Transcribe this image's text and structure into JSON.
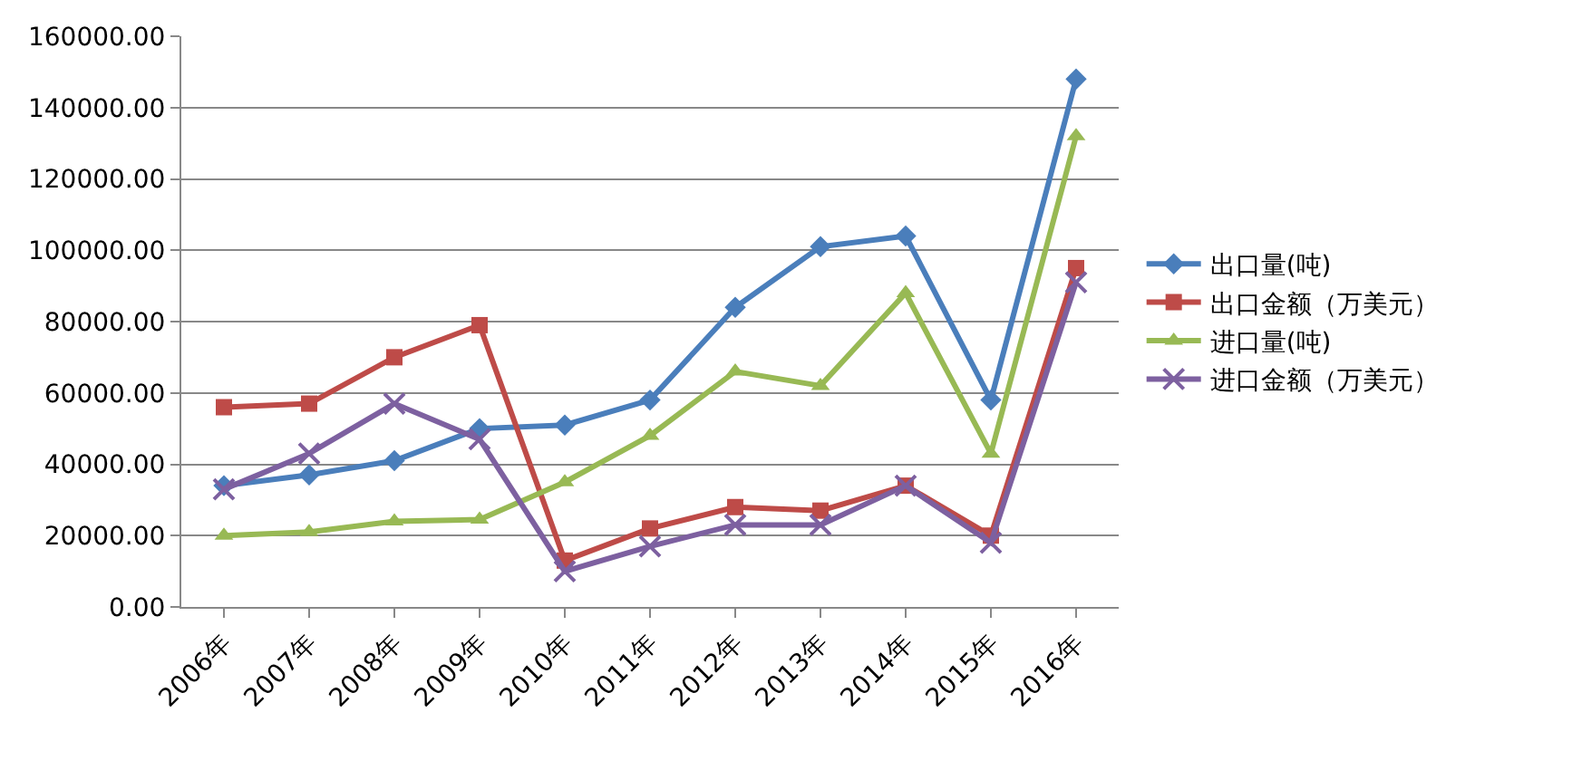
{
  "chart_data": {
    "type": "line",
    "categories": [
      "2006年",
      "2007年",
      "2008年",
      "2009年",
      "2010年",
      "2011年",
      "2012年",
      "2013年",
      "2014年",
      "2015年",
      "2016年"
    ],
    "ylim": [
      0,
      160000
    ],
    "yticks": [
      {
        "value": 0,
        "label": "0.00"
      },
      {
        "value": 20000,
        "label": "20000.00"
      },
      {
        "value": 40000,
        "label": "40000.00"
      },
      {
        "value": 60000,
        "label": "60000.00"
      },
      {
        "value": 80000,
        "label": "80000.00"
      },
      {
        "value": 100000,
        "label": "100000.00"
      },
      {
        "value": 120000,
        "label": "120000.00"
      },
      {
        "value": 140000,
        "label": "140000.00"
      },
      {
        "value": 160000,
        "label": "160000.00"
      }
    ],
    "grid": "y",
    "legend": "right",
    "line_style": "solid",
    "series": [
      {
        "name": "出口量(吨)",
        "color": "#4a7ebb",
        "marker": "diamond",
        "values": [
          34000,
          37000,
          41000,
          50000,
          51000,
          58000,
          84000,
          101000,
          104000,
          58000,
          148000
        ]
      },
      {
        "name": "出口金额（万美元）",
        "color": "#be4b48",
        "marker": "square",
        "values": [
          56000,
          57000,
          70000,
          79000,
          13000,
          22000,
          28000,
          27000,
          34000,
          20000,
          95000
        ]
      },
      {
        "name": "进口量(吨)",
        "color": "#98b954",
        "marker": "triangle",
        "values": [
          20000,
          21000,
          24000,
          24500,
          35000,
          48000,
          66000,
          62000,
          88000,
          43000,
          132000
        ]
      },
      {
        "name": "进口金额（万美元）",
        "color": "#7d60a0",
        "marker": "cross",
        "values": [
          33000,
          43000,
          57000,
          47000,
          10000,
          17000,
          23000,
          23000,
          34000,
          18000,
          91000
        ]
      }
    ]
  }
}
